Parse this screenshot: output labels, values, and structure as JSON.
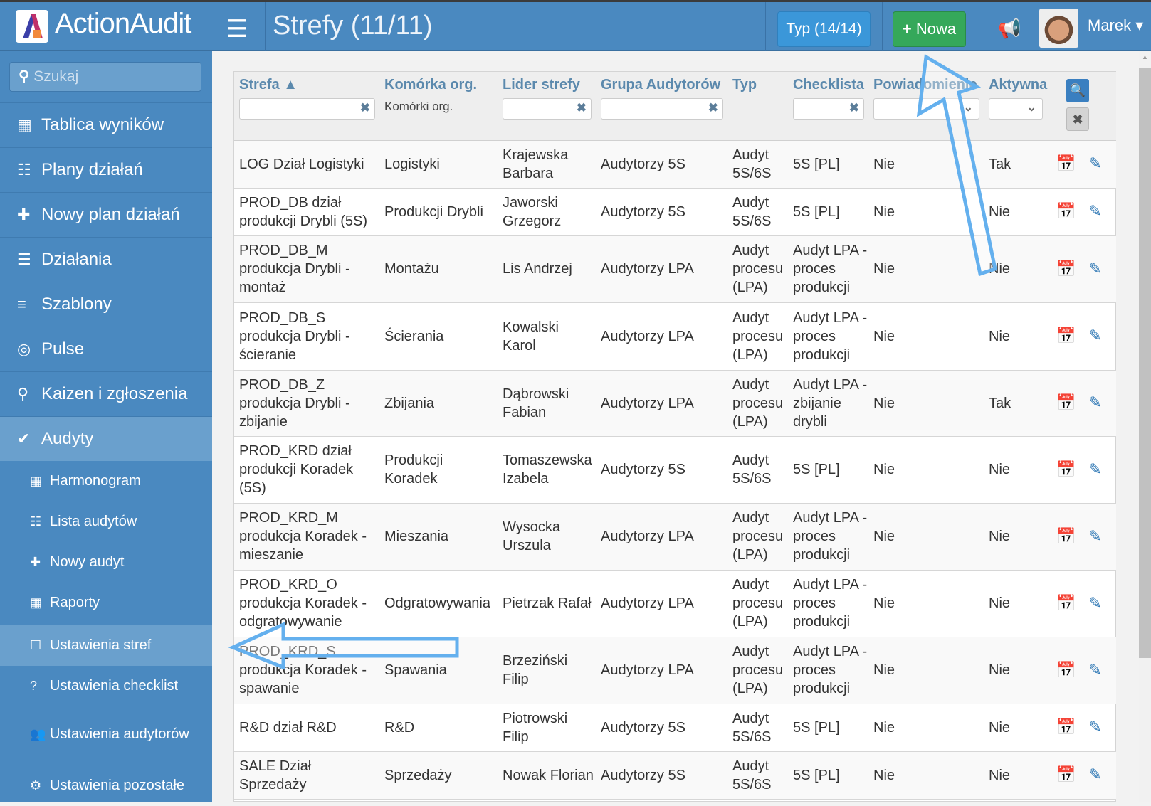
{
  "header": {
    "brand": "ActionAudit",
    "title": "Strefy (11/11)",
    "typ_button": "Typ (14/14)",
    "new_button": "Nowa",
    "user": "Marek",
    "menu_icon": "hamburger-icon",
    "notify_icon": "megaphone-icon"
  },
  "sidebar": {
    "search_placeholder": "Szukaj",
    "items": [
      {
        "label": "Tablica wyników",
        "icon": "calendar-icon"
      },
      {
        "label": "Plany działań",
        "icon": "list-icon"
      },
      {
        "label": "Nowy plan działań",
        "icon": "plus-icon"
      },
      {
        "label": "Działania",
        "icon": "sliders-icon"
      },
      {
        "label": "Szablony",
        "icon": "bars-icon"
      },
      {
        "label": "Pulse",
        "icon": "target-icon"
      },
      {
        "label": "Kaizen i zgłoszenia",
        "icon": "lightbulb-icon"
      },
      {
        "label": "Audyty",
        "icon": "check-icon"
      }
    ],
    "sub_items": [
      {
        "label": "Harmonogram"
      },
      {
        "label": "Lista audytów"
      },
      {
        "label": "Nowy audyt"
      },
      {
        "label": "Raporty"
      },
      {
        "label": "Ustawienia stref"
      },
      {
        "label": "Ustawienia checklist"
      },
      {
        "label": "Ustawienia audytorów"
      },
      {
        "label": "Ustawienia pozostałe"
      }
    ]
  },
  "table": {
    "columns": [
      "Strefa ▲",
      "Komórka org.",
      "Lider strefy",
      "Grupa Audytorów",
      "Typ",
      "Checklista",
      "Powiadomienie",
      "Aktywna"
    ],
    "org_filter_text": "Komórki org.",
    "rows": [
      [
        "LOG Dział Logistyki",
        "Logistyki",
        "Krajewska Barbara",
        "Audytorzy 5S",
        "Audyt 5S/6S",
        "5S [PL]",
        "Nie",
        "Tak"
      ],
      [
        "PROD_DB dział produkcji Drybli (5S)",
        "Produkcji Drybli",
        "Jaworski Grzegorz",
        "Audytorzy 5S",
        "Audyt 5S/6S",
        "5S [PL]",
        "Nie",
        "Nie"
      ],
      [
        "PROD_DB_M produkcja Drybli - montaż",
        "Montażu",
        "Lis Andrzej",
        "Audytorzy LPA",
        "Audyt procesu (LPA)",
        "Audyt LPA - proces produkcji",
        "Nie",
        "Nie"
      ],
      [
        "PROD_DB_S produkcja Drybli - ścieranie",
        "Ścierania",
        "Kowalski Karol",
        "Audytorzy LPA",
        "Audyt procesu (LPA)",
        "Audyt LPA - proces produkcji",
        "Nie",
        "Nie"
      ],
      [
        "PROD_DB_Z produkcja Drybli - zbijanie",
        "Zbijania",
        "Dąbrowski Fabian",
        "Audytorzy LPA",
        "Audyt procesu (LPA)",
        "Audyt LPA - zbijanie drybli",
        "Nie",
        "Tak"
      ],
      [
        "PROD_KRD dział produkcji Koradek (5S)",
        "Produkcji Koradek",
        "Tomaszewska Izabela",
        "Audytorzy 5S",
        "Audyt 5S/6S",
        "5S [PL]",
        "Nie",
        "Nie"
      ],
      [
        "PROD_KRD_M produkcja Koradek - mieszanie",
        "Mieszania",
        "Wysocka Urszula",
        "Audytorzy LPA",
        "Audyt procesu (LPA)",
        "Audyt LPA - proces produkcji",
        "Nie",
        "Nie"
      ],
      [
        "PROD_KRD_O produkcja Koradek - odgratowywanie",
        "Odgratowywania",
        "Pietrzak Rafał",
        "Audytorzy LPA",
        "Audyt procesu (LPA)",
        "Audyt LPA - proces produkcji",
        "Nie",
        "Nie"
      ],
      [
        "PROD_KRD_S produkcja Koradek - spawanie",
        "Spawania",
        "Brzeziński Filip",
        "Audytorzy LPA",
        "Audyt procesu (LPA)",
        "Audyt LPA - proces produkcji",
        "Nie",
        "Nie"
      ],
      [
        "R&D dział R&D",
        "R&D",
        "Piotrowski Filip",
        "Audytorzy 5S",
        "Audyt 5S/6S",
        "5S [PL]",
        "Nie",
        "Nie"
      ],
      [
        "SALE Dział Sprzedaży",
        "Sprzedaży",
        "Nowak Florian",
        "Audytorzy 5S",
        "Audyt 5S/6S",
        "5S [PL]",
        "Nie",
        "Nie"
      ]
    ]
  },
  "colors": {
    "header": "#4a89c0",
    "accent_green": "#35a85a",
    "accent_blue": "#3b97d9",
    "annotation_arrow": "#64b0ee"
  }
}
